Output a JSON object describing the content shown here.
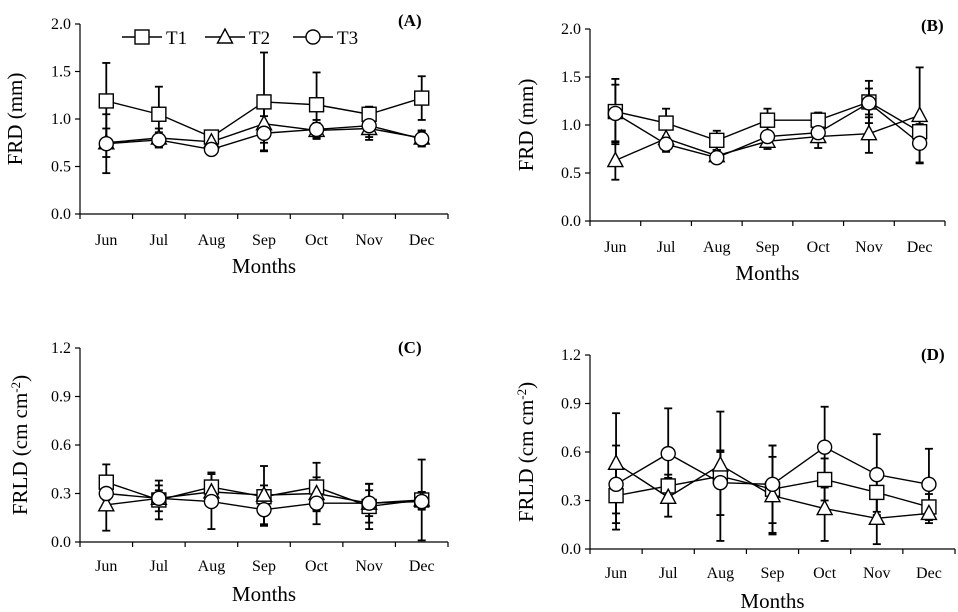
{
  "figure": {
    "legend": [
      "T1",
      "T2",
      "T3"
    ],
    "colors": {
      "line": "#000000",
      "marker_fill": "#ffffff",
      "background": "#ffffff"
    }
  },
  "chart_data": [
    {
      "type": "line",
      "panel": "(A)",
      "xlabel": "Months",
      "ylabel": "FRD (mm)",
      "categories": [
        "Jun",
        "Jul",
        "Aug",
        "Sep",
        "Oct",
        "Nov",
        "Dec"
      ],
      "ylim": [
        0,
        2.0
      ],
      "yticks": [
        "0.0",
        "0.5",
        "1.0",
        "1.5",
        "2.0"
      ],
      "legend_position": "top-left",
      "series": [
        {
          "name": "T1",
          "marker": "square",
          "values": [
            1.19,
            1.05,
            0.81,
            1.18,
            1.15,
            1.05,
            1.22
          ],
          "error": [
            0.4,
            0.29,
            0.05,
            0.52,
            0.34,
            0.08,
            0.23
          ]
        },
        {
          "name": "T2",
          "marker": "triangle",
          "values": [
            0.75,
            0.8,
            0.76,
            0.95,
            0.88,
            0.9,
            0.8
          ],
          "error": [
            0.15,
            0.1,
            0.05,
            0.2,
            0.08,
            0.12,
            0.08
          ]
        },
        {
          "name": "T3",
          "marker": "circle",
          "values": [
            0.74,
            0.78,
            0.68,
            0.85,
            0.89,
            0.93,
            0.79
          ],
          "error": [
            0.31,
            0.08,
            0.04,
            0.18,
            0.1,
            0.12,
            0.08
          ]
        }
      ]
    },
    {
      "type": "line",
      "panel": "(B)",
      "xlabel": "Months",
      "ylabel": "FRD (mm)",
      "categories": [
        "Jun",
        "Jul",
        "Aug",
        "Sep",
        "Oct",
        "Nov",
        "Dec"
      ],
      "ylim": [
        0,
        2.0
      ],
      "yticks": [
        "0.0",
        "0.5",
        "1.0",
        "1.5",
        "2.0"
      ],
      "series": [
        {
          "name": "T1",
          "marker": "square",
          "values": [
            1.14,
            1.02,
            0.84,
            1.05,
            1.05,
            1.24,
            0.93
          ],
          "error": [
            0.34,
            0.15,
            0.1,
            0.12,
            0.08,
            0.22,
            0.12
          ]
        },
        {
          "name": "T2",
          "marker": "triangle",
          "values": [
            0.63,
            0.86,
            0.68,
            0.83,
            0.88,
            0.91,
            1.1
          ],
          "error": [
            0.2,
            0.1,
            0.06,
            0.08,
            0.12,
            0.2,
            0.5
          ]
        },
        {
          "name": "T3",
          "marker": "circle",
          "values": [
            1.12,
            0.8,
            0.66,
            0.88,
            0.92,
            1.23,
            0.81
          ],
          "error": [
            0.3,
            0.08,
            0.05,
            0.1,
            0.1,
            0.15,
            0.2
          ]
        }
      ]
    },
    {
      "type": "line",
      "panel": "(C)",
      "xlabel": "Months",
      "ylabel": "FRLD (cm cm-2)",
      "ylabel_main": "FRLD (cm cm",
      "ylabel_sup": "-2",
      "ylabel_end": ")",
      "categories": [
        "Jun",
        "Jul",
        "Aug",
        "Sep",
        "Oct",
        "Nov",
        "Dec"
      ],
      "ylim": [
        0,
        1.2
      ],
      "yticks": [
        "0.0",
        "0.3",
        "0.6",
        "0.9",
        "1.2"
      ],
      "series": [
        {
          "name": "T1",
          "marker": "square",
          "values": [
            0.37,
            0.26,
            0.34,
            0.28,
            0.34,
            0.22,
            0.26
          ],
          "error": [
            0.11,
            0.12,
            0.09,
            0.07,
            0.15,
            0.14,
            0.25
          ]
        },
        {
          "name": "T2",
          "marker": "triangle",
          "values": [
            0.23,
            0.27,
            0.31,
            0.29,
            0.3,
            0.24,
            0.26
          ],
          "error": [
            0.16,
            0.08,
            0.07,
            0.18,
            0.1,
            0.08,
            0.05
          ]
        },
        {
          "name": "T3",
          "marker": "circle",
          "values": [
            0.3,
            0.27,
            0.25,
            0.2,
            0.24,
            0.24,
            0.25
          ],
          "error": [
            0.07,
            0.05,
            0.17,
            0.1,
            0.13,
            0.12,
            0.05
          ]
        }
      ]
    },
    {
      "type": "line",
      "panel": "(D)",
      "xlabel": "Months",
      "ylabel": "FRLD (cm cm-2)",
      "ylabel_main": "FRLD (cm cm",
      "ylabel_sup": "-2",
      "ylabel_end": ")",
      "categories": [
        "Jun",
        "Jul",
        "Aug",
        "Sep",
        "Oct",
        "Nov",
        "Dec"
      ],
      "ylim": [
        0,
        1.2
      ],
      "yticks": [
        "0.0",
        "0.3",
        "0.6",
        "0.9",
        "1.2"
      ],
      "series": [
        {
          "name": "T1",
          "marker": "square",
          "values": [
            0.33,
            0.39,
            0.45,
            0.37,
            0.43,
            0.35,
            0.26
          ],
          "error": [
            0.21,
            0.07,
            0.4,
            0.27,
            0.13,
            0.12,
            0.08
          ]
        },
        {
          "name": "T2",
          "marker": "triangle",
          "values": [
            0.53,
            0.32,
            0.52,
            0.33,
            0.25,
            0.19,
            0.22
          ],
          "error": [
            0.31,
            0.12,
            0.08,
            0.24,
            0.2,
            0.16,
            0.06
          ]
        },
        {
          "name": "T3",
          "marker": "circle",
          "values": [
            0.4,
            0.59,
            0.41,
            0.4,
            0.63,
            0.46,
            0.4
          ],
          "error": [
            0.24,
            0.28,
            0.2,
            0.24,
            0.25,
            0.25,
            0.22
          ]
        }
      ]
    }
  ]
}
